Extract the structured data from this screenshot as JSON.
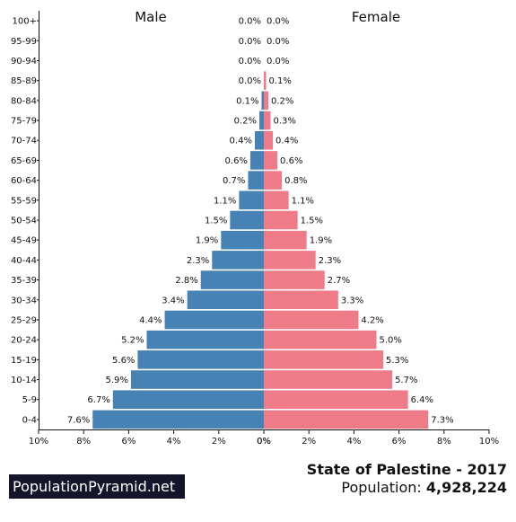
{
  "chart_data": {
    "type": "bar",
    "orientation": "horizontal-pyramid",
    "title": "State of Palestine - 2017",
    "categories": [
      "0-4",
      "5-9",
      "10-14",
      "15-19",
      "20-24",
      "25-29",
      "30-34",
      "35-39",
      "40-44",
      "45-49",
      "50-54",
      "55-59",
      "60-64",
      "65-69",
      "70-74",
      "75-79",
      "80-84",
      "85-89",
      "90-94",
      "95-99",
      "100+"
    ],
    "series": [
      {
        "name": "Male",
        "color": "#4682b4",
        "values": [
          7.6,
          6.7,
          5.9,
          5.6,
          5.2,
          4.4,
          3.4,
          2.8,
          2.3,
          1.9,
          1.5,
          1.1,
          0.7,
          0.6,
          0.4,
          0.2,
          0.1,
          0.0,
          0.0,
          0.0,
          0.0
        ],
        "labels": [
          "7.6%",
          "6.7%",
          "5.9%",
          "5.6%",
          "5.2%",
          "4.4%",
          "3.4%",
          "2.8%",
          "2.3%",
          "1.9%",
          "1.5%",
          "1.1%",
          "0.7%",
          "0.6%",
          "0.4%",
          "0.2%",
          "0.1%",
          "0.0%",
          "0.0%",
          "0.0%",
          "0.0%"
        ]
      },
      {
        "name": "Female",
        "color": "#f07b88",
        "values": [
          7.3,
          6.4,
          5.7,
          5.3,
          5.0,
          4.2,
          3.3,
          2.7,
          2.3,
          1.9,
          1.5,
          1.1,
          0.8,
          0.6,
          0.4,
          0.3,
          0.2,
          0.1,
          0.0,
          0.0,
          0.0
        ],
        "labels": [
          "7.3%",
          "6.4%",
          "5.7%",
          "5.3%",
          "5.0%",
          "4.2%",
          "3.3%",
          "2.7%",
          "2.3%",
          "1.9%",
          "1.5%",
          "1.1%",
          "0.8%",
          "0.6%",
          "0.4%",
          "0.3%",
          "0.2%",
          "0.1%",
          "0.0%",
          "0.0%",
          "0.0%"
        ]
      }
    ],
    "xlim": [
      0,
      10
    ],
    "xticks_left": [
      "10%",
      "8%",
      "6%",
      "4%",
      "2%",
      "0%"
    ],
    "xticks_right": [
      "0%",
      "2%",
      "4%",
      "6%",
      "8%",
      "10%"
    ],
    "grid": false
  },
  "footer": {
    "brand": "PopulationPyramid.net",
    "title": "State of Palestine - 2017",
    "population_label": "Population:",
    "population_value": "4,928,224"
  }
}
